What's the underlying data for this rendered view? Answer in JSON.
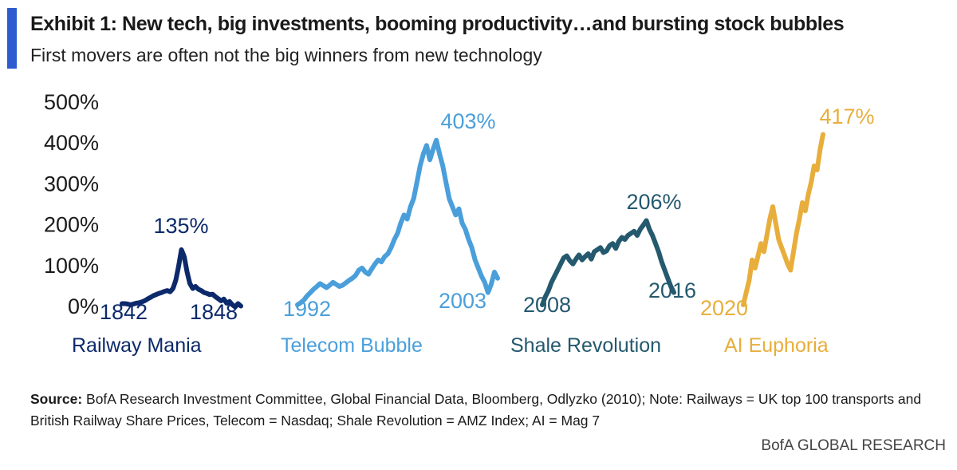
{
  "header": {
    "title": "Exhibit 1: New tech, big investments, booming productivity…and bursting stock bubbles",
    "subtitle": "First movers are often not the big winners from new technology"
  },
  "colors": {
    "accent": "#2d5bd0",
    "railway": "#0c2a6b",
    "telecom": "#4a9fdb",
    "shale": "#24596e",
    "ai": "#e8ae3c"
  },
  "chart_data": {
    "type": "line",
    "title": "Exhibit 1: New tech, big investments, booming productivity…and bursting stock bubbles",
    "ylim": [
      0,
      500
    ],
    "y_ticks": [
      "0%",
      "100%",
      "200%",
      "300%",
      "400%",
      "500%"
    ],
    "grid": false,
    "series": [
      {
        "name": "Railway Mania",
        "color": "#0c2a6b",
        "start_label": "1842",
        "end_label": "1848",
        "peak_label": "135%",
        "values": [
          3,
          3,
          2,
          0,
          2,
          4,
          5,
          7,
          10,
          14,
          18,
          22,
          25,
          28,
          30,
          33,
          35,
          32,
          40,
          60,
          95,
          135,
          118,
          80,
          52,
          40,
          45,
          38,
          35,
          30,
          28,
          25,
          26,
          20,
          15,
          10,
          14,
          4,
          8,
          0,
          -5,
          3,
          -3
        ]
      },
      {
        "name": "Telecom Bubble",
        "color": "#4a9fdb",
        "start_label": "1992",
        "end_label": "2003",
        "peak_label": "403%",
        "values": [
          0,
          5,
          12,
          22,
          30,
          38,
          45,
          52,
          47,
          42,
          48,
          55,
          50,
          45,
          48,
          54,
          60,
          65,
          72,
          85,
          90,
          80,
          75,
          88,
          100,
          110,
          105,
          118,
          125,
          140,
          160,
          175,
          200,
          220,
          210,
          240,
          260,
          300,
          340,
          370,
          390,
          355,
          380,
          403,
          370,
          340,
          300,
          260,
          240,
          220,
          235,
          200,
          185,
          160,
          140,
          110,
          90,
          70,
          55,
          30,
          50,
          80,
          65
        ]
      },
      {
        "name": "Shale Revolution",
        "color": "#24596e",
        "start_label": "2008",
        "end_label": "2016",
        "peak_label": "206%",
        "values": [
          0,
          20,
          35,
          55,
          70,
          85,
          100,
          115,
          120,
          108,
          100,
          112,
          122,
          110,
          118,
          125,
          112,
          130,
          135,
          140,
          128,
          132,
          145,
          150,
          138,
          155,
          165,
          160,
          170,
          175,
          180,
          170,
          185,
          195,
          206,
          185,
          170,
          150,
          130,
          105,
          85,
          65,
          45,
          30
        ]
      },
      {
        "name": "AI Euphoria",
        "color": "#e8ae3c",
        "start_label": "2020",
        "end_label": "",
        "peak_label": "417%",
        "values": [
          0,
          30,
          60,
          110,
          90,
          120,
          150,
          130,
          170,
          210,
          240,
          200,
          160,
          140,
          120,
          100,
          85,
          130,
          175,
          210,
          250,
          230,
          270,
          300,
          340,
          330,
          380,
          417
        ]
      }
    ]
  },
  "footer": {
    "source_label": "Source:",
    "source_text": "BofA Research Investment Committee, Global Financial Data, Bloomberg, Odlyzko (2010); Note: Railways = UK top 100 transports and British Railway Share Prices, Telecom = Nasdaq; Shale Revolution = AMZ Index; AI = Mag 7",
    "brand": "BofA GLOBAL RESEARCH"
  }
}
